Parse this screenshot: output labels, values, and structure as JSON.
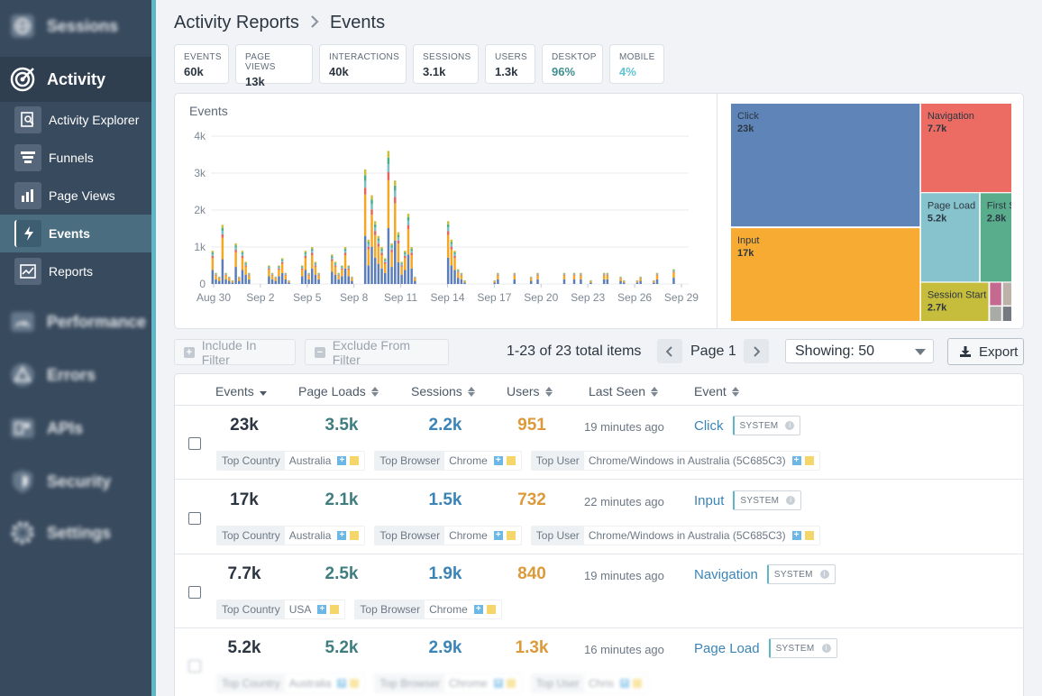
{
  "sidebar": {
    "items": [
      {
        "label": "Sessions",
        "icon": "globe-icon"
      },
      {
        "label": "Activity",
        "icon": "target-icon"
      },
      {
        "label": "Performance",
        "icon": "speedometer-icon"
      },
      {
        "label": "Errors",
        "icon": "warning-icon"
      },
      {
        "label": "APIs",
        "icon": "api-icon"
      },
      {
        "label": "Security",
        "icon": "shield-icon"
      },
      {
        "label": "Settings",
        "icon": "gear-icon"
      }
    ],
    "subitems": [
      {
        "label": "Activity Explorer",
        "icon": "search-document-icon"
      },
      {
        "label": "Funnels",
        "icon": "funnel-icon"
      },
      {
        "label": "Page Views",
        "icon": "bar-chart-icon"
      },
      {
        "label": "Events",
        "icon": "lightning-icon"
      },
      {
        "label": "Reports",
        "icon": "report-icon"
      }
    ]
  },
  "breadcrumb": {
    "parent": "Activity Reports",
    "current": "Events"
  },
  "stats": [
    {
      "label": "EVENTS",
      "value": "60k"
    },
    {
      "label": "PAGE VIEWS",
      "value": "13k"
    },
    {
      "label": "INTERACTIONS",
      "value": "40k"
    },
    {
      "label": "SESSIONS",
      "value": "3.1k"
    },
    {
      "label": "USERS",
      "value": "1.3k"
    },
    {
      "label": "DESKTOP",
      "value": "96%"
    },
    {
      "label": "MOBILE",
      "value": "4%"
    }
  ],
  "chart_data": [
    {
      "type": "bar",
      "stacked": true,
      "title": "Events",
      "yticks": [
        "0",
        "1k",
        "2k",
        "3k",
        "4k"
      ],
      "ylim": [
        0,
        4000
      ],
      "xticks": [
        "Aug 30",
        "Sep 2",
        "Sep 5",
        "Sep 8",
        "Sep 11",
        "Sep 14",
        "Sep 17",
        "Sep 20",
        "Sep 23",
        "Sep 26",
        "Sep 29"
      ],
      "grid": true,
      "colors": [
        "#5b7db8",
        "#f5a623",
        "#e8645a",
        "#7bbec8",
        "#4caf8a",
        "#c9bf3a"
      ],
      "totals": [
        900,
        300,
        200,
        1600,
        300,
        200,
        100,
        1100,
        200,
        900,
        600,
        300,
        0,
        0,
        0,
        0,
        0,
        500,
        300,
        200,
        500,
        700,
        300,
        100,
        0,
        0,
        0,
        500,
        900,
        300,
        1000,
        600,
        300,
        0,
        0,
        0,
        800,
        600,
        300,
        500,
        1000,
        500,
        200,
        0,
        0,
        0,
        3100,
        1200,
        2400,
        1700,
        1300,
        1000,
        700,
        3600,
        1100,
        2800,
        1400,
        600,
        900,
        1900,
        1000,
        200,
        0,
        0,
        0,
        0,
        0,
        0,
        0,
        0,
        0,
        1700,
        1200,
        900,
        400,
        300,
        100,
        0,
        0,
        0,
        0,
        0,
        0,
        0,
        0,
        100,
        300,
        0,
        0,
        0,
        0,
        300,
        0,
        0,
        0,
        0,
        200,
        0,
        300,
        0,
        0,
        0,
        0,
        0,
        0,
        0,
        300,
        0,
        0,
        300,
        0,
        300,
        0,
        0,
        100,
        0,
        0,
        0,
        300,
        300,
        0,
        0,
        0,
        200,
        100,
        0,
        0,
        0,
        100,
        200,
        0,
        0,
        0,
        100,
        300,
        0,
        0,
        0,
        0,
        400,
        0,
        0,
        0,
        0
      ]
    },
    {
      "type": "treemap",
      "items": [
        {
          "label": "Click",
          "value": "23k",
          "color": "#5f85b8"
        },
        {
          "label": "Navigation",
          "value": "7.7k",
          "color": "#ec6c63"
        },
        {
          "label": "Input",
          "value": "17k",
          "color": "#f7ab33"
        },
        {
          "label": "Page Load",
          "value": "5.2k",
          "color": "#86c3cc"
        },
        {
          "label": "First S",
          "value": "2.8k",
          "color": "#5aad8c"
        },
        {
          "label": "Session Start",
          "value": "2.7k",
          "color": "#c6bd3d"
        }
      ]
    }
  ],
  "toolbar": {
    "include": "Include In Filter",
    "exclude": "Exclude From Filter",
    "pager": "1-23 of 23 total items",
    "page": "Page 1",
    "showing": "Showing: 50",
    "export": "Export"
  },
  "table": {
    "columns": [
      "Events",
      "Page Loads",
      "Sessions",
      "Users",
      "Last Seen",
      "Event"
    ],
    "badge": "SYSTEM",
    "rows": [
      {
        "events": "23k",
        "page_loads": "3.5k",
        "sessions": "2.2k",
        "users": "951",
        "last_seen": "19 minutes ago",
        "event": "Click",
        "tags": [
          {
            "k": "Top Country",
            "v": "Australia"
          },
          {
            "k": "Top Browser",
            "v": "Chrome"
          },
          {
            "k": "Top User",
            "v": "Chrome/Windows in Australia (5C685C3)"
          }
        ]
      },
      {
        "events": "17k",
        "page_loads": "2.1k",
        "sessions": "1.5k",
        "users": "732",
        "last_seen": "22 minutes ago",
        "event": "Input",
        "tags": [
          {
            "k": "Top Country",
            "v": "Australia"
          },
          {
            "k": "Top Browser",
            "v": "Chrome"
          },
          {
            "k": "Top User",
            "v": "Chrome/Windows in Australia (5C685C3)"
          }
        ]
      },
      {
        "events": "7.7k",
        "page_loads": "2.5k",
        "sessions": "1.9k",
        "users": "840",
        "last_seen": "19 minutes ago",
        "event": "Navigation",
        "tags": [
          {
            "k": "Top Country",
            "v": "USA"
          },
          {
            "k": "Top Browser",
            "v": "Chrome"
          }
        ]
      },
      {
        "events": "5.2k",
        "page_loads": "5.2k",
        "sessions": "2.9k",
        "users": "1.3k",
        "last_seen": "16 minutes ago",
        "event": "Page Load",
        "tags": [
          {
            "k": "Top Country",
            "v": "Australia"
          },
          {
            "k": "Top Browser",
            "v": "Chrome"
          },
          {
            "k": "Top User",
            "v": "Chris"
          }
        ]
      }
    ]
  }
}
